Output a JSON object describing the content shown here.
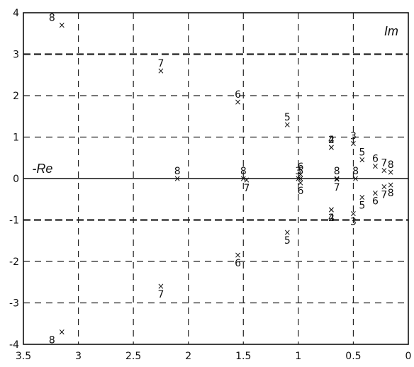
{
  "chart_data": {
    "type": "scatter",
    "xlabel": "-Re",
    "ylabel": "Im",
    "xlim": [
      3.5,
      0
    ],
    "ylim": [
      -4,
      4
    ],
    "x_ticks": [
      3.5,
      3,
      2.5,
      2,
      1.5,
      1,
      0.5,
      0
    ],
    "y_ticks": [
      4,
      3,
      2,
      1,
      0,
      -1,
      -2,
      -3,
      -4
    ],
    "x_tick_labels": [
      "3.5",
      "3",
      "2.5",
      "2",
      "1.5",
      "1",
      "0.5",
      "0"
    ],
    "y_tick_labels": [
      "4",
      "3",
      "2",
      "1",
      "0",
      "-1",
      "-2",
      "-3",
      "-4"
    ],
    "grid": "dashed",
    "emphasized_lines": [
      3,
      -1
    ],
    "points": [
      {
        "x": 3.15,
        "y": 3.7,
        "label": "8"
      },
      {
        "x": 2.25,
        "y": 2.6,
        "label": "7"
      },
      {
        "x": 1.55,
        "y": 1.85,
        "label": "6"
      },
      {
        "x": 1.1,
        "y": 1.3,
        "label": "5"
      },
      {
        "x": 2.1,
        "y": 0.0,
        "label": "8"
      },
      {
        "x": 1.5,
        "y": 0.0,
        "label": "8"
      },
      {
        "x": 1.47,
        "y": -0.03,
        "label": "7"
      },
      {
        "x": 0.98,
        "y": 0.1,
        "label": "6"
      },
      {
        "x": 0.98,
        "y": -0.1,
        "label": "6"
      },
      {
        "x": 1.0,
        "y": 0.0,
        "label": "3"
      },
      {
        "x": 0.98,
        "y": 0.0,
        "label": "5"
      },
      {
        "x": 0.65,
        "y": 0.0,
        "label": "8"
      },
      {
        "x": 0.65,
        "y": -0.02,
        "label": "7"
      },
      {
        "x": 0.7,
        "y": 0.75,
        "label": "2"
      },
      {
        "x": 0.7,
        "y": 0.75,
        "label": "4"
      },
      {
        "x": 0.7,
        "y": -0.75,
        "label": "2"
      },
      {
        "x": 0.7,
        "y": -0.75,
        "label": "4"
      },
      {
        "x": 0.5,
        "y": 0.85,
        "label": "3"
      },
      {
        "x": 0.5,
        "y": -0.85,
        "label": "3"
      },
      {
        "x": 0.48,
        "y": 0.0,
        "label": "8"
      },
      {
        "x": 0.42,
        "y": 0.45,
        "label": "5"
      },
      {
        "x": 0.42,
        "y": -0.45,
        "label": "5"
      },
      {
        "x": 0.3,
        "y": 0.3,
        "label": "6"
      },
      {
        "x": 0.3,
        "y": -0.35,
        "label": "6"
      },
      {
        "x": 0.22,
        "y": 0.2,
        "label": "7"
      },
      {
        "x": 0.22,
        "y": -0.2,
        "label": "7"
      },
      {
        "x": 0.16,
        "y": 0.15,
        "label": "8"
      },
      {
        "x": 0.16,
        "y": -0.15,
        "label": "8"
      },
      {
        "x": 1.1,
        "y": -1.3,
        "label": "5"
      },
      {
        "x": 1.55,
        "y": -1.85,
        "label": "6"
      },
      {
        "x": 2.25,
        "y": -2.6,
        "label": "7"
      },
      {
        "x": 3.15,
        "y": -3.7,
        "label": "8"
      }
    ]
  }
}
